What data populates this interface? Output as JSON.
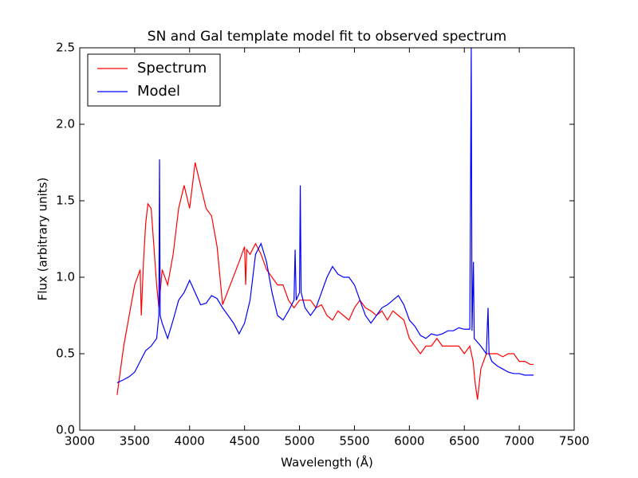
{
  "chart_data": {
    "type": "line",
    "title": "SN and Gal template model fit to observed spectrum",
    "x_label": "Wavelength (Å)",
    "y_label": "Flux (arbitrary units)",
    "xlim": [
      3000,
      7500
    ],
    "xticks": [
      3000,
      3500,
      4000,
      4500,
      5000,
      5500,
      6000,
      6500,
      7000,
      7500
    ],
    "ylim": [
      0,
      2.5
    ],
    "yticks": [
      {
        "value": 0,
        "label": "0.0"
      },
      0.5,
      {
        "value": 1,
        "label": "1.0"
      },
      1.5,
      {
        "value": 2,
        "label": "2.0"
      },
      2.5
    ],
    "legend": "upper-left",
    "series": [
      {
        "name": "Spectrum",
        "color": "#ff0000",
        "x": [
          3340,
          3400,
          3450,
          3500,
          3550,
          3560,
          3580,
          3600,
          3620,
          3650,
          3700,
          3720,
          3750,
          3800,
          3850,
          3900,
          3950,
          4000,
          4050,
          4100,
          4150,
          4200,
          4250,
          4300,
          4450,
          4500,
          4510,
          4520,
          4550,
          4600,
          4650,
          4700,
          4750,
          4800,
          4850,
          4900,
          4950,
          5000,
          5050,
          5100,
          5150,
          5200,
          5250,
          5300,
          5350,
          5400,
          5450,
          5500,
          5550,
          5600,
          5650,
          5700,
          5750,
          5800,
          5850,
          5900,
          5950,
          6000,
          6050,
          6100,
          6150,
          6200,
          6250,
          6300,
          6350,
          6400,
          6450,
          6500,
          6550,
          6580,
          6600,
          6620,
          6650,
          6700,
          6750,
          6800,
          6850,
          6900,
          6950,
          7000,
          7050,
          7100,
          7130
        ],
        "values": [
          0.23,
          0.55,
          0.75,
          0.95,
          1.05,
          0.75,
          1.1,
          1.35,
          1.48,
          1.45,
          0.95,
          0.8,
          1.05,
          0.95,
          1.15,
          1.45,
          1.6,
          1.45,
          1.75,
          1.6,
          1.45,
          1.4,
          1.2,
          0.82,
          1.1,
          1.2,
          0.95,
          1.18,
          1.15,
          1.22,
          1.15,
          1.05,
          1.0,
          0.95,
          0.95,
          0.85,
          0.8,
          0.85,
          0.85,
          0.85,
          0.8,
          0.82,
          0.75,
          0.72,
          0.78,
          0.75,
          0.72,
          0.8,
          0.85,
          0.8,
          0.78,
          0.75,
          0.78,
          0.72,
          0.78,
          0.75,
          0.72,
          0.6,
          0.55,
          0.5,
          0.55,
          0.55,
          0.6,
          0.55,
          0.55,
          0.55,
          0.55,
          0.5,
          0.55,
          0.45,
          0.3,
          0.2,
          0.4,
          0.5,
          0.5,
          0.5,
          0.48,
          0.5,
          0.5,
          0.45,
          0.45,
          0.43,
          0.43
        ]
      },
      {
        "name": "Model",
        "color": "#0000ff",
        "x": [
          3340,
          3400,
          3450,
          3500,
          3550,
          3600,
          3650,
          3700,
          3720,
          3726,
          3732,
          3750,
          3800,
          3850,
          3900,
          3950,
          4000,
          4050,
          4100,
          4150,
          4200,
          4250,
          4300,
          4350,
          4400,
          4450,
          4500,
          4550,
          4600,
          4650,
          4700,
          4750,
          4800,
          4850,
          4900,
          4950,
          4960,
          4970,
          5000,
          5007,
          5015,
          5050,
          5100,
          5150,
          5200,
          5250,
          5300,
          5350,
          5400,
          5450,
          5500,
          5550,
          5600,
          5650,
          5700,
          5750,
          5800,
          5850,
          5900,
          5950,
          6000,
          6050,
          6100,
          6150,
          6200,
          6250,
          6300,
          6350,
          6400,
          6450,
          6500,
          6550,
          6563,
          6570,
          6583,
          6590,
          6650,
          6700,
          6716,
          6725,
          6750,
          6800,
          6850,
          6900,
          6950,
          7000,
          7050,
          7130
        ],
        "values": [
          0.31,
          0.33,
          0.35,
          0.38,
          0.45,
          0.52,
          0.55,
          0.6,
          0.75,
          1.77,
          0.75,
          0.7,
          0.6,
          0.72,
          0.85,
          0.9,
          0.98,
          0.9,
          0.82,
          0.83,
          0.88,
          0.86,
          0.8,
          0.75,
          0.7,
          0.63,
          0.7,
          0.85,
          1.15,
          1.22,
          1.1,
          0.9,
          0.75,
          0.72,
          0.78,
          0.85,
          1.18,
          0.85,
          0.9,
          1.6,
          0.9,
          0.8,
          0.75,
          0.8,
          0.9,
          1.0,
          1.07,
          1.02,
          1.0,
          1.0,
          0.95,
          0.85,
          0.75,
          0.7,
          0.75,
          0.8,
          0.82,
          0.85,
          0.88,
          0.82,
          0.72,
          0.68,
          0.62,
          0.6,
          0.63,
          0.62,
          0.63,
          0.65,
          0.65,
          0.67,
          0.66,
          0.66,
          2.5,
          0.65,
          1.1,
          0.6,
          0.55,
          0.5,
          0.8,
          0.5,
          0.45,
          0.42,
          0.4,
          0.38,
          0.37,
          0.37,
          0.36,
          0.36
        ]
      }
    ]
  }
}
